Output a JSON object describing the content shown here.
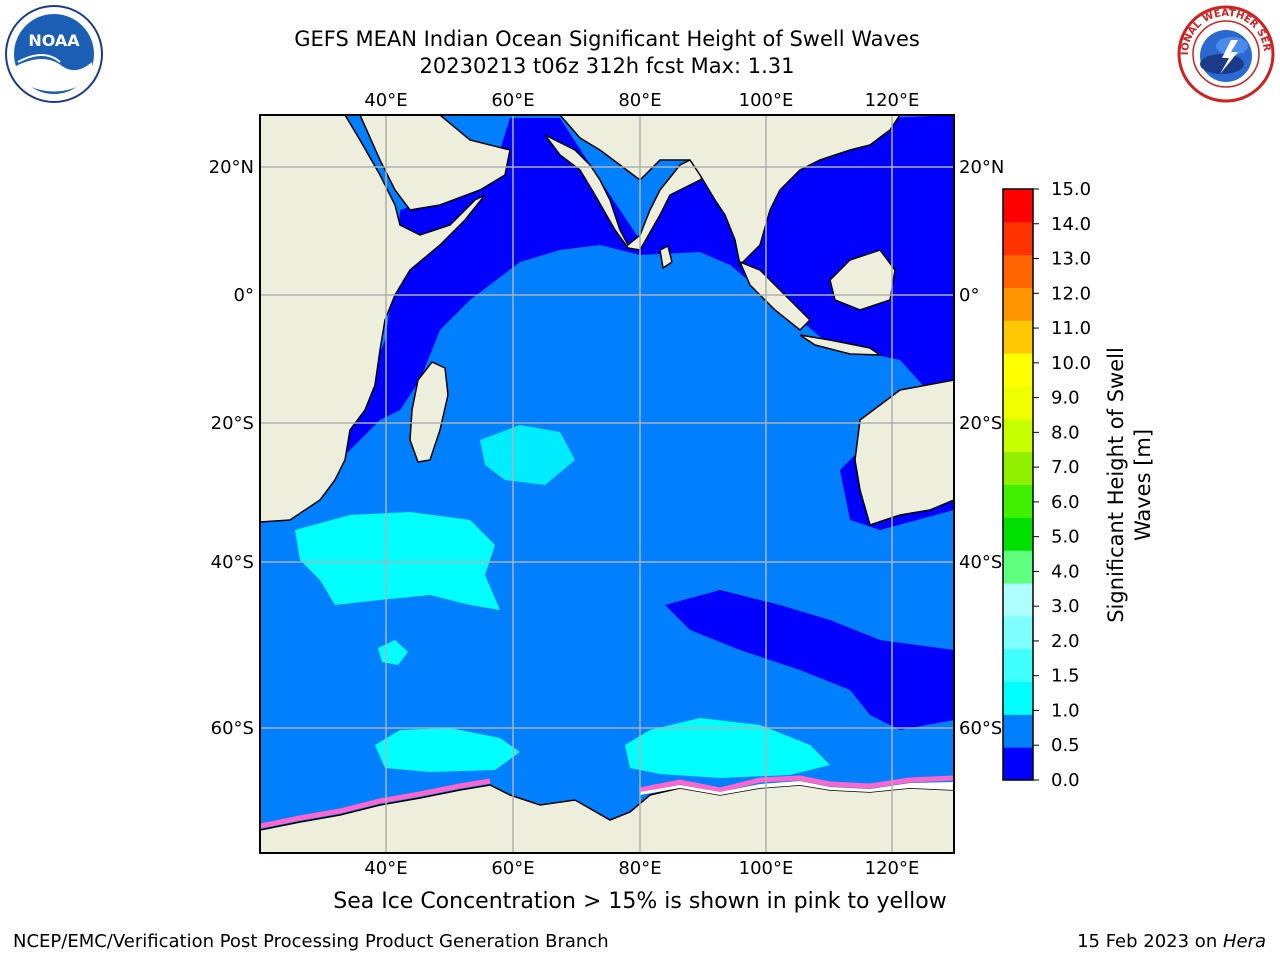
{
  "header": {
    "title_line1": "GEFS MEAN Indian Ocean Significant Height of Swell Waves",
    "title_line2": "20230213 t06z 312h fcst   Max: 1.31"
  },
  "map": {
    "lon_labels": [
      "40°E",
      "60°E",
      "80°E",
      "100°E",
      "120°E"
    ],
    "lat_labels_left": [
      "20°N",
      "0°",
      "20°S",
      "40°S",
      "60°S"
    ],
    "lat_labels_right": [
      "20°N",
      "0°",
      "20°S",
      "40°S",
      "60°S"
    ],
    "colors": {
      "land": "#eeeedd",
      "ocean_low": "#0000ff",
      "ocean_mid": "#0080ff",
      "ocean_high": "#00ffff",
      "ice": "#ff66cc",
      "grid": "#b0b0b0"
    }
  },
  "colorbar": {
    "title_line1": "Significant Height of Swell",
    "title_line2": "Waves [m]",
    "tick_labels": [
      "0.0",
      "0.5",
      "1.0",
      "1.5",
      "2.0",
      "3.0",
      "4.0",
      "5.0",
      "6.0",
      "7.0",
      "8.0",
      "9.0",
      "10.0",
      "11.0",
      "12.0",
      "13.0",
      "14.0",
      "15.0"
    ],
    "colors": [
      "#0000ff",
      "#0080ff",
      "#00ffff",
      "#40ffff",
      "#80ffff",
      "#b0ffff",
      "#60ff80",
      "#00e000",
      "#40f000",
      "#90f000",
      "#c8ff00",
      "#f0ff00",
      "#ffff00",
      "#ffc800",
      "#ff9600",
      "#ff6400",
      "#ff3200",
      "#ff0000"
    ]
  },
  "caption": "Sea Ice Concentration > 15% is shown in pink to yellow",
  "footer": {
    "left": "NCEP/EMC/Verification Post Processing Product Generation Branch",
    "right_prefix": "15 Feb 2023 on ",
    "right_machine": "Hera"
  },
  "logos": {
    "noaa_text": "NOAA",
    "nws_text": "NATIONAL WEATHER SERVICE"
  }
}
